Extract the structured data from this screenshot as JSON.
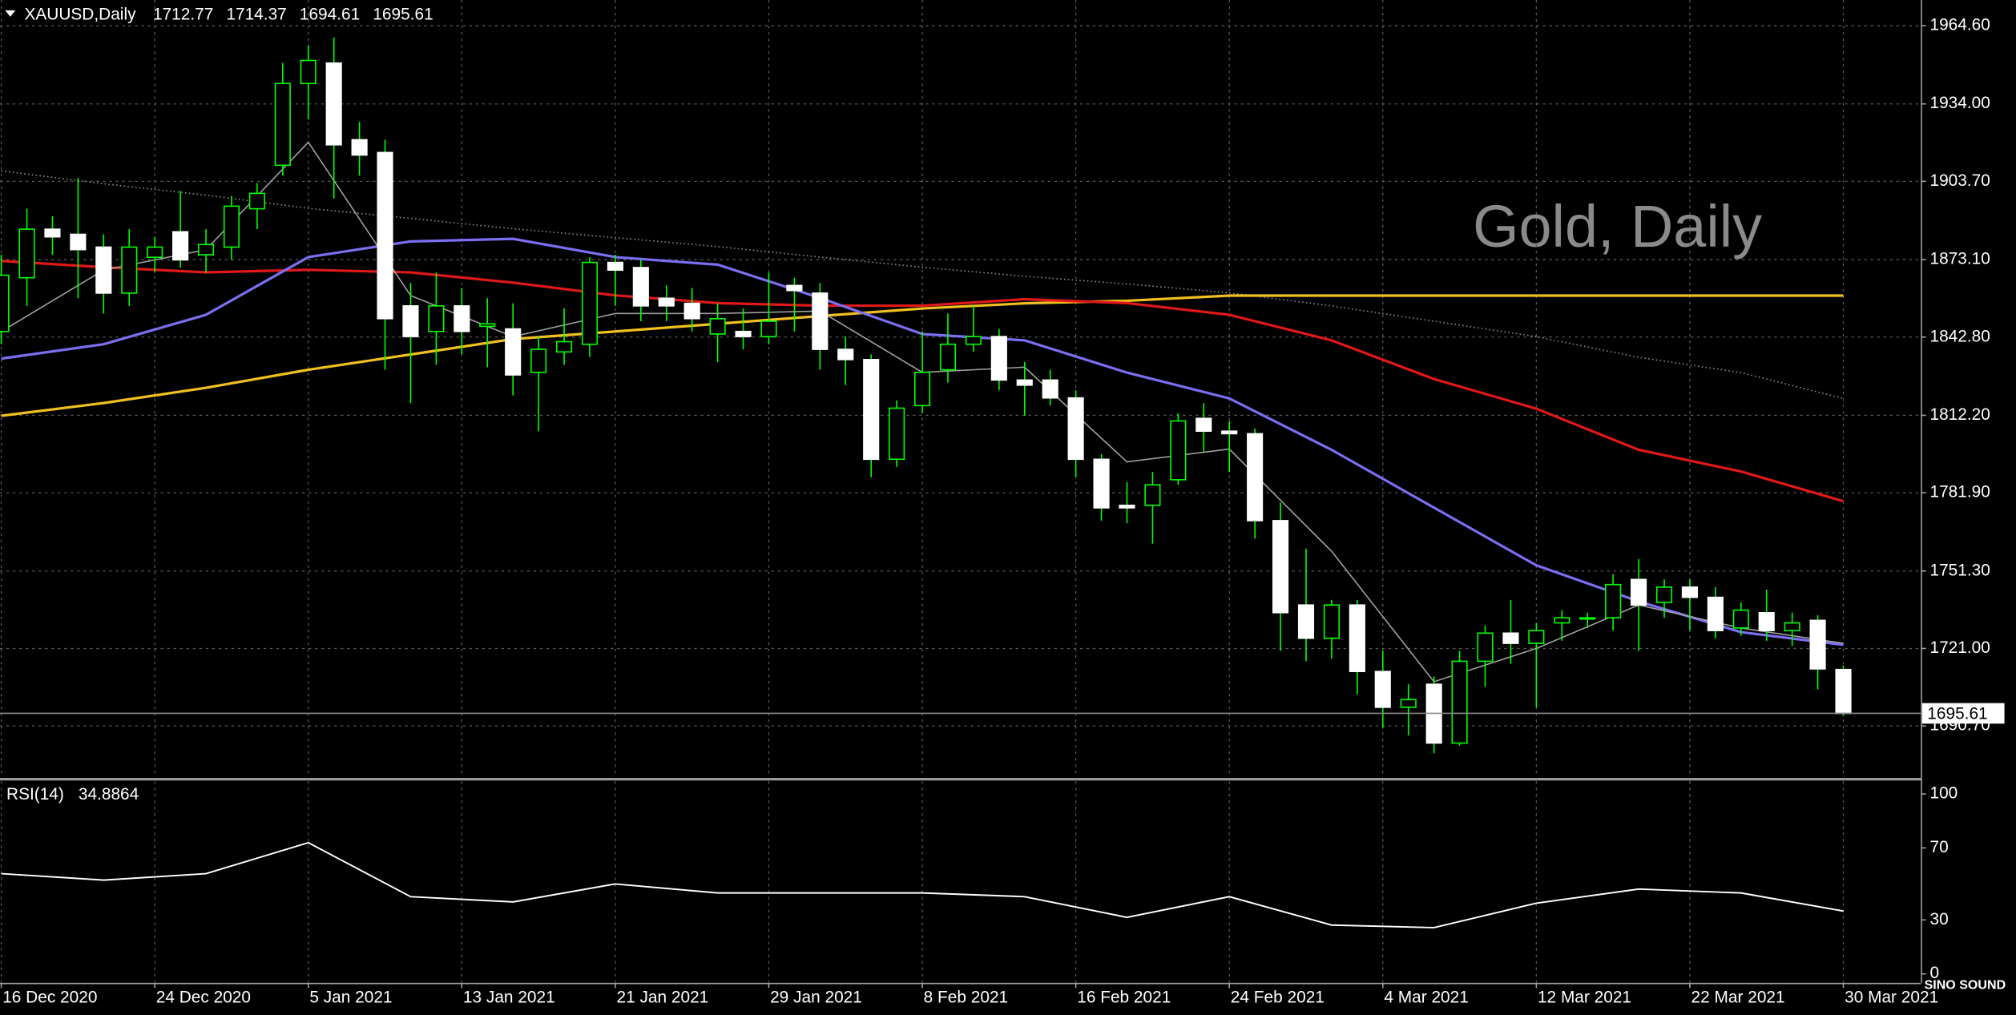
{
  "header": {
    "symbol": "XAUUSD,Daily"
  },
  "watermark": "Gold, Daily",
  "logo": "SINO SOUND",
  "chart_data": [
    {
      "type": "candlestick",
      "categories": [
        "16 Dec 2020",
        null,
        null,
        null,
        null,
        null,
        "24 Dec 2020",
        null,
        null,
        null,
        null,
        null,
        "5 Jan 2021",
        null,
        null,
        null,
        null,
        null,
        "13 Jan 2021",
        null,
        null,
        null,
        null,
        null,
        "21 Jan 2021",
        null,
        null,
        null,
        null,
        null,
        "29 Jan 2021",
        null,
        null,
        null,
        null,
        null,
        "8 Feb 2021",
        null,
        null,
        null,
        null,
        null,
        "16 Feb 2021",
        null,
        null,
        null,
        null,
        null,
        "24 Feb 2021",
        null,
        null,
        null,
        null,
        null,
        "4 Mar 2021",
        null,
        null,
        null,
        null,
        null,
        "12 Mar 2021",
        null,
        null,
        null,
        null,
        null,
        "22 Mar 2021",
        null,
        null,
        null,
        null,
        null,
        "30 Mar 2021"
      ],
      "open": [
        1845,
        1866,
        1885,
        1883,
        1878,
        1860,
        1874,
        1884,
        1875,
        1878,
        1893,
        1910,
        1942,
        1950,
        1920,
        1915,
        1855,
        1845,
        1855,
        1847,
        1846,
        1829,
        1837,
        1840,
        1872,
        1870,
        1858,
        1856,
        1844,
        1845,
        1843,
        1863,
        1860,
        1838,
        1834,
        1795,
        1816,
        1830,
        1840,
        1843,
        1826,
        1826,
        1819,
        1795,
        1777,
        1777,
        1787,
        1811,
        1806,
        1805,
        1771,
        1738,
        1725,
        1738,
        1712,
        1698,
        1707,
        1684,
        1716,
        1727,
        1723,
        1731,
        1733,
        1733,
        1748,
        1739,
        1745,
        1741,
        1729,
        1735,
        1728,
        1732,
        1712.77
      ],
      "high": [
        1875,
        1893,
        1890,
        1905,
        1883,
        1885,
        1882,
        1900,
        1885,
        1898,
        1903,
        1950,
        1957,
        1960,
        1927,
        1920,
        1864,
        1868,
        1862,
        1858,
        1856,
        1843,
        1854,
        1874,
        1875,
        1873,
        1863,
        1862,
        1856,
        1854,
        1868,
        1866,
        1864,
        1843,
        1836,
        1818,
        1845,
        1852,
        1855,
        1846,
        1833,
        1830,
        1822,
        1797,
        1786,
        1790,
        1813,
        1817,
        1810,
        1807,
        1778,
        1760,
        1740,
        1740,
        1720,
        1707,
        1710,
        1720,
        1730,
        1740,
        1731,
        1736,
        1735,
        1750,
        1756,
        1748,
        1748,
        1745,
        1739,
        1744,
        1735,
        1734,
        1714.37
      ],
      "low": [
        1840,
        1855,
        1875,
        1858,
        1852,
        1855,
        1868,
        1870,
        1868,
        1873,
        1885,
        1906,
        1928,
        1897,
        1906,
        1830,
        1817,
        1832,
        1836,
        1831,
        1820,
        1806,
        1832,
        1835,
        1855,
        1849,
        1849,
        1845,
        1833,
        1838,
        1840,
        1845,
        1830,
        1824,
        1788,
        1792,
        1813,
        1825,
        1837,
        1822,
        1812,
        1816,
        1788,
        1771,
        1770,
        1762,
        1785,
        1798,
        1790,
        1764,
        1720,
        1716,
        1717,
        1703,
        1690,
        1687,
        1680,
        1683,
        1706,
        1715,
        1698,
        1724,
        1729,
        1728,
        1720,
        1733,
        1728,
        1725,
        1726,
        1724,
        1722,
        1705,
        1694.61
      ],
      "close": [
        1867,
        1885,
        1882,
        1877,
        1860,
        1878,
        1878,
        1873,
        1879,
        1894,
        1899,
        1942,
        1951,
        1918,
        1914,
        1850,
        1843,
        1855,
        1845,
        1848,
        1828,
        1838,
        1841,
        1872,
        1869,
        1855,
        1855,
        1850,
        1850,
        1843,
        1849,
        1861,
        1838,
        1834,
        1795,
        1815,
        1829,
        1840,
        1843,
        1826,
        1824,
        1819,
        1795,
        1776,
        1776,
        1785,
        1810,
        1806,
        1805,
        1771,
        1735,
        1725,
        1738,
        1712,
        1698,
        1701,
        1684,
        1716,
        1727,
        1723,
        1728,
        1733,
        1733,
        1746,
        1738,
        1745,
        1741,
        1728,
        1736,
        1728,
        1731,
        1713,
        1695.61
      ],
      "xlim": [
        -0.05,
        75.03
      ],
      "ylim": [
        1670.6,
        1974.65
      ],
      "yticks": [
        {
          "value": 1964.6,
          "label": "1964.60"
        },
        {
          "value": 1934,
          "label": "1934.00"
        },
        {
          "value": 1903.7,
          "label": "1903.70"
        },
        {
          "value": 1873.1,
          "label": "1873.10"
        },
        {
          "value": 1842.8,
          "label": "1842.80"
        },
        {
          "value": 1812.2,
          "label": "1812.20"
        },
        {
          "value": 1781.9,
          "label": "1781.90"
        },
        {
          "value": 1751.3,
          "label": "1751.30"
        },
        {
          "value": 1721,
          "label": "1721.00"
        },
        {
          "value": 1690.7,
          "label": "1690.70"
        }
      ],
      "grid": true,
      "up_color": "#000000",
      "down_color": "#ffffff",
      "wick_color": "#00ff00",
      "overlays": [
        {
          "color": "#8c8c8c",
          "style": "dotted",
          "x": [
            0,
            4,
            8,
            12,
            16,
            20,
            24,
            28,
            32,
            36,
            40,
            44,
            48,
            52,
            56,
            60,
            64,
            68,
            72
          ],
          "values": [
            1907.8,
            1902.8,
            1898.3,
            1893.2,
            1889.2,
            1885.2,
            1881.7,
            1878.2,
            1874.1,
            1870.1,
            1866.6,
            1863.6,
            1860.1,
            1855.0,
            1849.0,
            1843.0,
            1834.9,
            1828.9,
            1818.8
          ]
        },
        {
          "color": "#f0c020",
          "style": "solid",
          "x": [
            0,
            4,
            8,
            12,
            16,
            20,
            24,
            28,
            32,
            36,
            40,
            44,
            48,
            52,
            56,
            60,
            64,
            68,
            72
          ],
          "values": [
            1812,
            1817,
            1823,
            1830,
            1836,
            1842,
            1845,
            1848,
            1851,
            1854,
            1856,
            1857,
            1859,
            1859,
            1859,
            1859,
            1859,
            1859,
            1859
          ]
        },
        {
          "color": "#e01818",
          "style": "solid",
          "x": [
            0,
            4,
            8,
            12,
            16,
            20,
            24,
            28,
            32,
            36,
            40,
            44,
            48,
            52,
            56,
            60,
            64,
            68,
            72
          ],
          "values": [
            1872.6,
            1870.1,
            1868.1,
            1869.1,
            1868.1,
            1864.1,
            1859.1,
            1856.1,
            1855.1,
            1855.1,
            1857.6,
            1856.1,
            1851.5,
            1841.5,
            1826.4,
            1814.8,
            1798.7,
            1790.2,
            1778.6
          ]
        },
        {
          "color": "#7b6ef0",
          "style": "solid",
          "x": [
            0,
            4,
            8,
            12,
            16,
            20,
            24,
            28,
            32,
            36,
            40,
            44,
            48,
            52,
            56,
            60,
            64,
            68,
            72
          ],
          "values": [
            1834.4,
            1840.0,
            1851.5,
            1874.1,
            1880.2,
            1881.2,
            1874.1,
            1871.1,
            1858.1,
            1844.0,
            1841.5,
            1828.9,
            1818.8,
            1798.7,
            1776.1,
            1753.5,
            1739.4,
            1727.4,
            1722.4
          ]
        },
        {
          "color": "#a0a0a0",
          "style": "thin",
          "x": [
            0,
            4,
            8,
            12,
            16,
            20,
            24,
            28,
            32,
            36,
            40,
            44,
            48,
            52,
            56,
            60,
            64,
            68,
            72
          ],
          "values": [
            1845,
            1869,
            1877,
            1919,
            1859,
            1843,
            1852,
            1852,
            1853,
            1829,
            1831,
            1794,
            1799,
            1759,
            1708,
            1721,
            1738,
            1729,
            1723
          ]
        }
      ]
    },
    {
      "type": "line",
      "title": "RSI(14)",
      "x": [
        0,
        4,
        8,
        12,
        16,
        20,
        24,
        28,
        32,
        36,
        40,
        44,
        48,
        52,
        56,
        60,
        64,
        68,
        72
      ],
      "values": [
        55.7,
        52.1,
        55.7,
        72.9,
        42.9,
        40,
        50,
        45,
        45,
        45,
        42.9,
        31.4,
        42.9,
        27.1,
        25.7,
        39.3,
        47.1,
        45,
        34.8864
      ],
      "color": "#ffffff",
      "xlim": [
        -0.05,
        75.03
      ],
      "ylim": [
        -5,
        107.1
      ],
      "yticks": [
        0,
        30,
        70,
        100
      ]
    }
  ]
}
